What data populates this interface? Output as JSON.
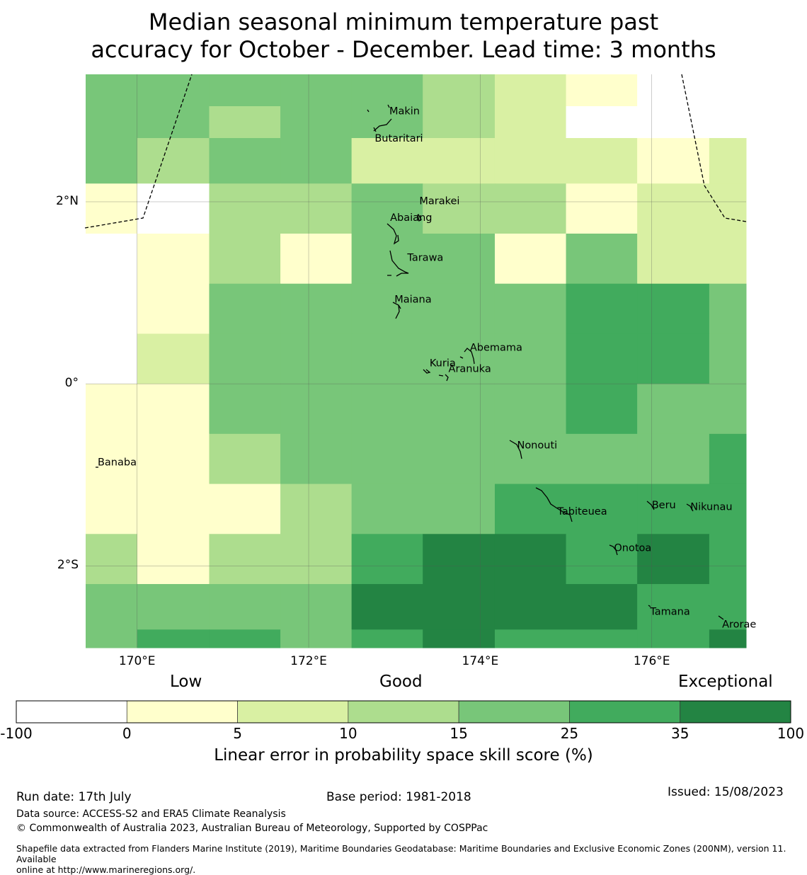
{
  "title_line1": "Median seasonal minimum temperature past",
  "title_line2": "accuracy for October - December. Lead time: 3 months",
  "map": {
    "lon_range": [
      169.4,
      177.1
    ],
    "lat_range": [
      -2.9,
      3.4
    ],
    "lon_ticks": [
      {
        "value": 170,
        "label": "170°E"
      },
      {
        "value": 172,
        "label": "172°E"
      },
      {
        "value": 174,
        "label": "174°E"
      },
      {
        "value": 176,
        "label": "176°E"
      }
    ],
    "lat_ticks": [
      {
        "value": 2,
        "label": "2°N"
      },
      {
        "value": 0,
        "label": "0°"
      },
      {
        "value": -2,
        "label": "2°S"
      }
    ],
    "grid": true,
    "class_colors": [
      "#ffffff",
      "#ffffcc",
      "#d9f0a3",
      "#addd8e",
      "#78c679",
      "#41ab5d",
      "#238443"
    ],
    "cell_lon_edges": [
      169.4,
      170.0,
      170.84,
      171.67,
      172.5,
      173.33,
      174.17,
      175.0,
      175.83,
      176.67,
      177.1
    ],
    "cell_lat_edges": [
      3.4,
      3.05,
      2.7,
      2.2,
      1.65,
      1.1,
      0.55,
      0.0,
      -0.55,
      -1.1,
      -1.65,
      -2.2,
      -2.7,
      -2.9
    ],
    "skill_class_grid": [
      [
        4,
        4,
        4,
        4,
        4,
        3,
        2,
        1,
        0,
        0
      ],
      [
        4,
        4,
        3,
        4,
        4,
        3,
        2,
        0,
        0,
        0
      ],
      [
        4,
        3,
        4,
        4,
        2,
        2,
        2,
        2,
        1,
        2
      ],
      [
        1,
        0,
        3,
        3,
        4,
        3,
        3,
        1,
        2,
        2
      ],
      [
        0,
        1,
        3,
        1,
        4,
        4,
        1,
        4,
        2,
        2
      ],
      [
        0,
        1,
        4,
        4,
        4,
        4,
        4,
        5,
        5,
        4
      ],
      [
        0,
        2,
        4,
        4,
        4,
        4,
        4,
        5,
        5,
        4
      ],
      [
        1,
        1,
        4,
        4,
        4,
        4,
        4,
        5,
        4,
        4
      ],
      [
        1,
        1,
        3,
        4,
        4,
        4,
        4,
        4,
        4,
        5
      ],
      [
        1,
        1,
        1,
        3,
        4,
        4,
        5,
        5,
        5,
        5
      ],
      [
        3,
        1,
        3,
        3,
        5,
        6,
        6,
        5,
        6,
        5
      ],
      [
        4,
        4,
        4,
        4,
        6,
        6,
        6,
        6,
        5,
        5
      ],
      [
        4,
        5,
        5,
        4,
        5,
        6,
        5,
        5,
        5,
        6
      ]
    ],
    "places": [
      {
        "name": "Makin",
        "lon": 172.94,
        "lat": 3.0
      },
      {
        "name": "Butaritari",
        "lon": 172.77,
        "lat": 2.7
      },
      {
        "name": "Marakei",
        "lon": 173.29,
        "lat": 2.01
      },
      {
        "name": "Abaiang",
        "lon": 172.95,
        "lat": 1.83
      },
      {
        "name": "Tarawa",
        "lon": 173.15,
        "lat": 1.39
      },
      {
        "name": "Maiana",
        "lon": 173.0,
        "lat": 0.93
      },
      {
        "name": "Abemama",
        "lon": 173.88,
        "lat": 0.4
      },
      {
        "name": "Kuria",
        "lon": 173.41,
        "lat": 0.23
      },
      {
        "name": "Aranuka",
        "lon": 173.63,
        "lat": 0.17
      },
      {
        "name": "Nonouti",
        "lon": 174.43,
        "lat": -0.67
      },
      {
        "name": "Banaba",
        "lon": 169.54,
        "lat": -0.86
      },
      {
        "name": "Tabiteuea",
        "lon": 174.9,
        "lat": -1.4
      },
      {
        "name": "Beru",
        "lon": 176.0,
        "lat": -1.33
      },
      {
        "name": "Nikunau",
        "lon": 176.45,
        "lat": -1.35
      },
      {
        "name": "Onotoa",
        "lon": 175.56,
        "lat": -1.8
      },
      {
        "name": "Tamana",
        "lon": 175.98,
        "lat": -2.5
      },
      {
        "name": "Arorae",
        "lon": 176.82,
        "lat": -2.64
      }
    ]
  },
  "colorbar": {
    "low_label": "Low",
    "good_label": "Good",
    "exceptional_label": "Exceptional",
    "bounds": [
      "-100",
      "0",
      "5",
      "10",
      "15",
      "25",
      "35",
      "100"
    ],
    "colors": [
      "#ffffff",
      "#ffffcc",
      "#d9f0a3",
      "#addd8e",
      "#78c679",
      "#41ab5d",
      "#238443"
    ],
    "title": "Linear error in probability space skill score (%)"
  },
  "footer": {
    "run_date": "Run date: 17th July",
    "base_period": "Base period: 1981-2018",
    "issued": "Issued: 15/08/2023",
    "data_source": "Data source: ACCESS-S2 and ERA5 Climate Reanalysis",
    "copyright": "© Commonwealth of Australia 2023, Australian Bureau of Meteorology, Supported by COSPPac",
    "shapefile_line1": "Shapefile data extracted from Flanders Marine Institute (2019), Maritime Boundaries Geodatabase: Maritime Boundaries and Exclusive Economic Zones (200NM), version 11. Available",
    "shapefile_line2": "online at http://www.marineregions.org/."
  }
}
